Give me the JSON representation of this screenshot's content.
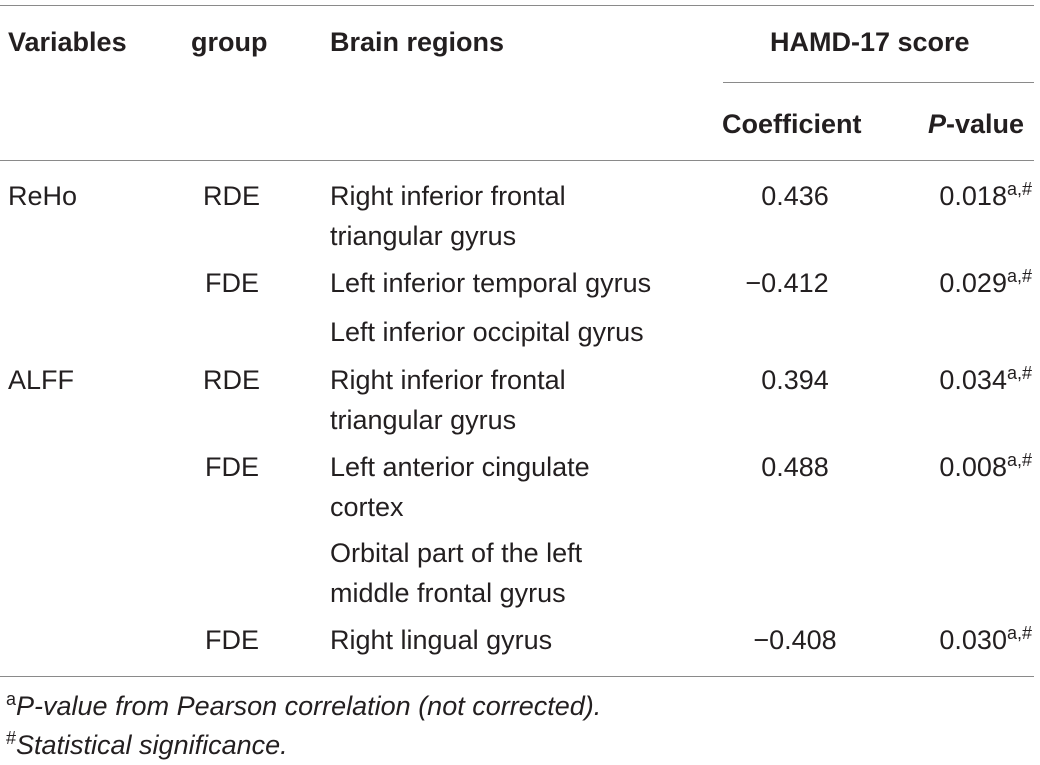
{
  "header": {
    "variables": "Variables",
    "group": "group",
    "brain_regions": "Brain regions",
    "hamd": "HAMD-17 score",
    "coefficient": "Coefficient",
    "pvalue_p": "P",
    "pvalue_rest": "-value"
  },
  "rows": [
    {
      "variable": "ReHo",
      "group": "RDE",
      "region_line1": "Right inferior frontal",
      "region_line2": "triangular gyrus",
      "coefficient": "0.436",
      "pvalue": "0.018",
      "pvalue_sup": "a,#"
    },
    {
      "variable": "",
      "group": "FDE",
      "region_line1": "Left inferior temporal gyrus",
      "region_line2": "",
      "coefficient": "−0.412",
      "pvalue": "0.029",
      "pvalue_sup": "a,#"
    },
    {
      "variable": "",
      "group": "",
      "region_line1": "Left inferior occipital gyrus",
      "region_line2": "",
      "coefficient": "",
      "pvalue": "",
      "pvalue_sup": ""
    },
    {
      "variable": "ALFF",
      "group": "RDE",
      "region_line1": "Right inferior frontal",
      "region_line2": "triangular gyrus",
      "coefficient": "0.394",
      "pvalue": "0.034",
      "pvalue_sup": "a,#"
    },
    {
      "variable": "",
      "group": "FDE",
      "region_line1": "Left anterior cingulate",
      "region_line2": "cortex",
      "coefficient": "0.488",
      "pvalue": "0.008",
      "pvalue_sup": "a,#"
    },
    {
      "variable": "",
      "group": "",
      "region_line1": "Orbital part of the left",
      "region_line2": "middle frontal gyrus",
      "coefficient": "",
      "pvalue": "",
      "pvalue_sup": ""
    },
    {
      "variable": "",
      "group": "FDE",
      "region_line1": "Right lingual gyrus",
      "region_line2": "",
      "coefficient": "−0.408",
      "pvalue": "0.030",
      "pvalue_sup": "a,#"
    }
  ],
  "footnotes": [
    {
      "marker": "a",
      "text": "P-value from Pearson correlation (not corrected)."
    },
    {
      "marker": "#",
      "text": "Statistical significance."
    }
  ]
}
